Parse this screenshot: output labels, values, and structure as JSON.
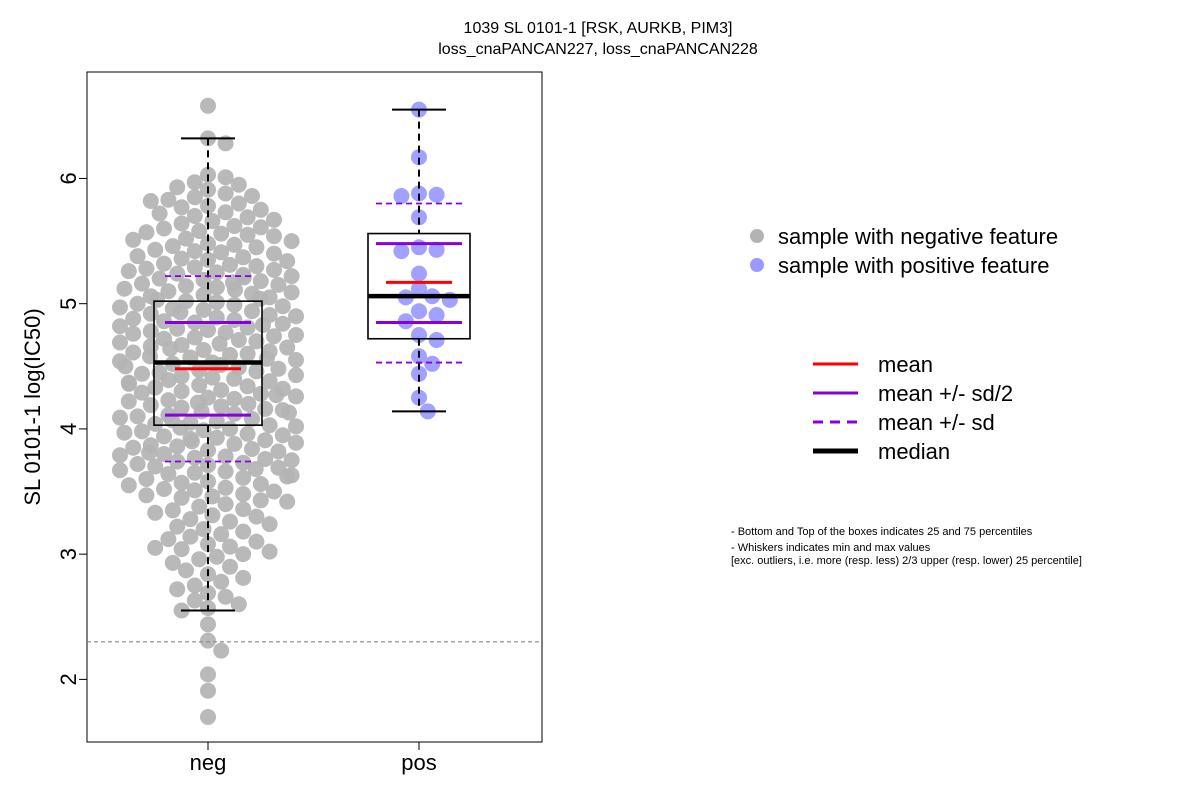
{
  "chart_data": {
    "type": "box",
    "title": "1039 SL 0101-1 [RSK, AURKB, PIM3]",
    "subtitle": "loss_cnaPANCAN227, loss_cnaPANCAN228",
    "ylabel": "SL 0101-1 log(IC50)",
    "ylim": [
      1.5,
      6.85
    ],
    "yticks": [
      "2",
      "3",
      "4",
      "5",
      "6"
    ],
    "categories": [
      "neg",
      "pos"
    ],
    "threshold_line": 2.3,
    "colors": {
      "neg_points": "#b3b3b3",
      "pos_points": "#9999ff",
      "mean": "#ff0000",
      "sd": "#8800dd",
      "median": "#000000"
    },
    "series": [
      {
        "name": "neg",
        "whisker_min": 2.55,
        "q1": 4.03,
        "median": 4.53,
        "q3": 5.02,
        "whisker_max": 6.32,
        "mean": 4.48,
        "mean_minus_half_sd": 4.11,
        "mean_plus_half_sd": 4.85,
        "mean_minus_sd": 3.74,
        "mean_plus_sd": 5.22,
        "outliers": [
          6.58,
          2.44,
          2.31,
          2.23,
          2.04,
          1.91,
          1.7
        ],
        "points": [
          6.58,
          6.32,
          6.28,
          6.03,
          6.01,
          5.97,
          5.95,
          5.93,
          5.91,
          5.88,
          5.86,
          5.85,
          5.83,
          5.82,
          5.8,
          5.78,
          5.77,
          5.75,
          5.73,
          5.72,
          5.7,
          5.69,
          5.67,
          5.66,
          5.64,
          5.62,
          5.61,
          5.6,
          5.58,
          5.57,
          5.56,
          5.55,
          5.54,
          5.52,
          5.51,
          5.5,
          5.48,
          5.47,
          5.46,
          5.45,
          5.43,
          5.42,
          5.41,
          5.4,
          5.38,
          5.37,
          5.36,
          5.35,
          5.34,
          5.32,
          5.31,
          5.3,
          5.29,
          5.28,
          5.27,
          5.26,
          5.25,
          5.24,
          5.23,
          5.22,
          5.21,
          5.2,
          5.19,
          5.18,
          5.17,
          5.16,
          5.15,
          5.14,
          5.13,
          5.12,
          5.11,
          5.1,
          5.09,
          5.08,
          5.07,
          5.06,
          5.05,
          5.04,
          5.03,
          5.02,
          5.01,
          5.0,
          4.99,
          4.98,
          4.97,
          4.96,
          4.95,
          4.94,
          4.93,
          4.92,
          4.91,
          4.9,
          4.89,
          4.88,
          4.87,
          4.86,
          4.85,
          4.84,
          4.83,
          4.82,
          4.81,
          4.8,
          4.79,
          4.78,
          4.77,
          4.76,
          4.75,
          4.74,
          4.73,
          4.72,
          4.71,
          4.7,
          4.69,
          4.68,
          4.67,
          4.66,
          4.65,
          4.64,
          4.63,
          4.62,
          4.61,
          4.6,
          4.59,
          4.58,
          4.57,
          4.56,
          4.55,
          4.54,
          4.53,
          4.52,
          4.51,
          4.5,
          4.49,
          4.48,
          4.47,
          4.46,
          4.45,
          4.44,
          4.43,
          4.42,
          4.41,
          4.4,
          4.39,
          4.38,
          4.37,
          4.36,
          4.35,
          4.34,
          4.33,
          4.32,
          4.31,
          4.3,
          4.29,
          4.28,
          4.27,
          4.26,
          4.25,
          4.24,
          4.23,
          4.22,
          4.21,
          4.2,
          4.19,
          4.18,
          4.17,
          4.16,
          4.15,
          4.14,
          4.13,
          4.12,
          4.11,
          4.1,
          4.09,
          4.08,
          4.07,
          4.06,
          4.05,
          4.04,
          4.03,
          4.02,
          4.01,
          4.0,
          3.99,
          3.98,
          3.97,
          3.96,
          3.95,
          3.94,
          3.93,
          3.92,
          3.91,
          3.9,
          3.89,
          3.88,
          3.87,
          3.86,
          3.85,
          3.84,
          3.83,
          3.82,
          3.81,
          3.8,
          3.79,
          3.78,
          3.77,
          3.76,
          3.75,
          3.74,
          3.73,
          3.72,
          3.71,
          3.7,
          3.69,
          3.68,
          3.67,
          3.66,
          3.65,
          3.64,
          3.63,
          3.62,
          3.61,
          3.6,
          3.58,
          3.57,
          3.56,
          3.55,
          3.53,
          3.52,
          3.51,
          3.5,
          3.48,
          3.47,
          3.46,
          3.45,
          3.43,
          3.42,
          3.4,
          3.38,
          3.36,
          3.35,
          3.33,
          3.31,
          3.3,
          3.28,
          3.26,
          3.24,
          3.22,
          3.2,
          3.18,
          3.16,
          3.14,
          3.12,
          3.1,
          3.08,
          3.06,
          3.05,
          3.04,
          3.02,
          3.0,
          2.98,
          2.96,
          2.93,
          2.9,
          2.87,
          2.84,
          2.81,
          2.78,
          2.75,
          2.72,
          2.69,
          2.66,
          2.63,
          2.6,
          2.57,
          2.55,
          2.44,
          2.31,
          2.23,
          2.04,
          1.91,
          1.7
        ]
      },
      {
        "name": "pos",
        "whisker_min": 4.14,
        "q1": 4.72,
        "median": 5.06,
        "q3": 5.56,
        "whisker_max": 6.55,
        "mean": 5.17,
        "mean_minus_half_sd": 4.85,
        "mean_plus_half_sd": 5.48,
        "mean_minus_sd": 4.53,
        "mean_plus_sd": 5.8,
        "outliers": [],
        "points": [
          6.55,
          6.17,
          5.88,
          5.87,
          5.86,
          5.69,
          5.45,
          5.43,
          5.42,
          5.24,
          5.12,
          5.06,
          5.05,
          5.03,
          4.94,
          4.91,
          4.86,
          4.75,
          4.71,
          4.58,
          4.52,
          4.44,
          4.25,
          4.14
        ]
      }
    ],
    "legend": {
      "points": [
        "sample with negative feature",
        "sample with positive feature"
      ],
      "lines": [
        "mean",
        "mean +/- sd/2",
        "mean +/- sd",
        "median"
      ]
    },
    "notes": [
      "- Bottom and Top of the boxes indicates 25 and 75 percentiles",
      "- Whiskers indicates min and max values",
      "[exc. outliers, i.e. more (resp. less) 2/3 upper (resp. lower) 25 percentile]"
    ]
  }
}
